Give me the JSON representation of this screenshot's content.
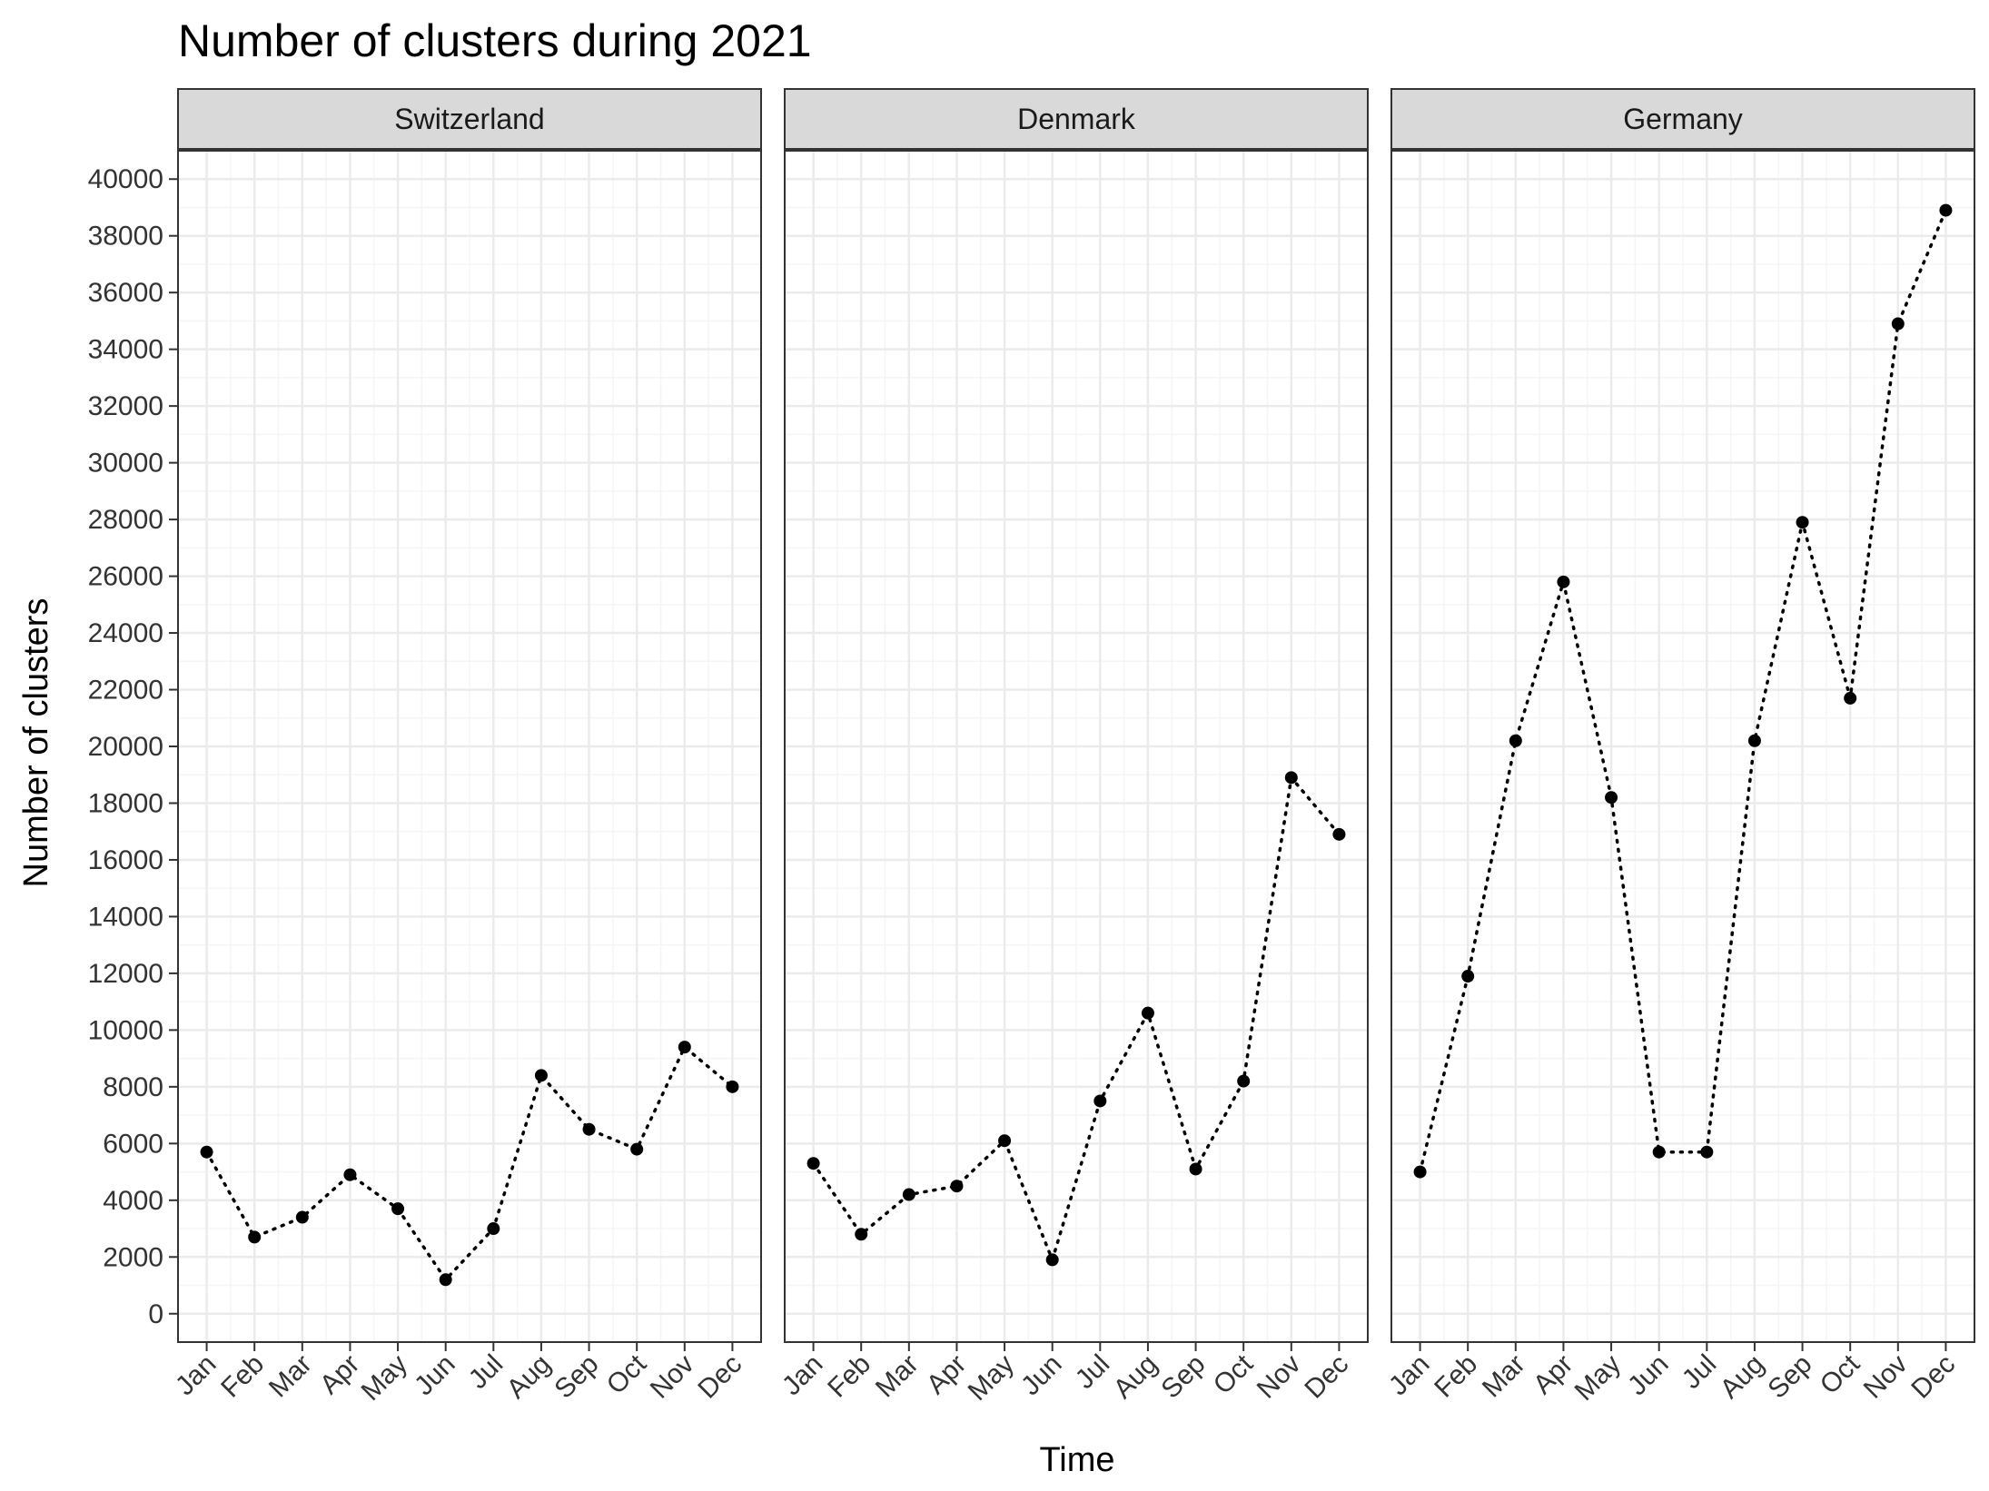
{
  "chart_data": {
    "type": "line",
    "title": "Number of clusters during 2021",
    "xlabel": "Time",
    "ylabel": "Number of clusters",
    "ylim": [
      -1000,
      41000
    ],
    "yticks": [
      0,
      2000,
      4000,
      6000,
      8000,
      10000,
      12000,
      14000,
      16000,
      18000,
      20000,
      22000,
      24000,
      26000,
      28000,
      30000,
      32000,
      34000,
      36000,
      38000,
      40000
    ],
    "categories": [
      "Jan",
      "Feb",
      "Mar",
      "Apr",
      "May",
      "Jun",
      "Jul",
      "Aug",
      "Sep",
      "Oct",
      "Nov",
      "Dec"
    ],
    "line_style": "dotted",
    "marker": "point",
    "grid": true,
    "facets": [
      {
        "name": "Switzerland",
        "values": [
          5700,
          2700,
          3400,
          4900,
          3700,
          1200,
          3000,
          8400,
          6500,
          5800,
          9400,
          8000
        ]
      },
      {
        "name": "Denmark",
        "values": [
          5300,
          2800,
          4200,
          4500,
          6100,
          1900,
          7500,
          10600,
          5100,
          8200,
          18900,
          16900
        ]
      },
      {
        "name": "Germany",
        "values": [
          5000,
          11900,
          20200,
          25800,
          18200,
          5700,
          5700,
          20200,
          27900,
          21700,
          34900,
          38900
        ]
      }
    ],
    "colors": {
      "point": "#000000",
      "line": "#000000",
      "strip_fill": "#d9d9d9",
      "panel_border": "#333333",
      "grid_major": "#ebebeb",
      "grid_minor": "#f5f5f5"
    }
  }
}
